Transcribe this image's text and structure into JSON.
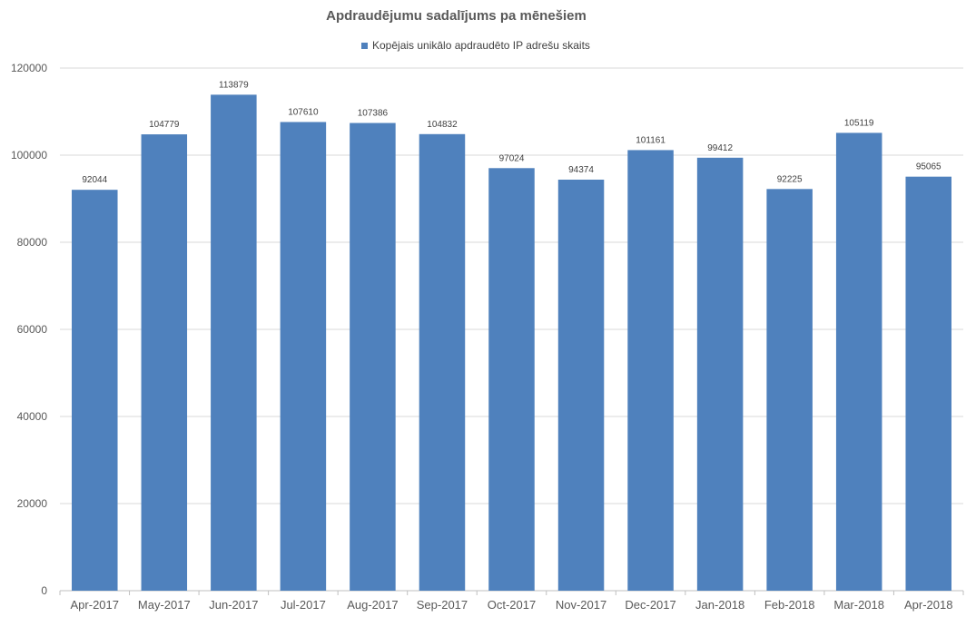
{
  "chart_data": {
    "type": "bar",
    "title": "Apdraudējumu sadalījums pa mēnešiem",
    "categories": [
      "Apr-2017",
      "May-2017",
      "Jun-2017",
      "Jul-2017",
      "Aug-2017",
      "Sep-2017",
      "Oct-2017",
      "Nov-2017",
      "Dec-2017",
      "Jan-2018",
      "Feb-2018",
      "Mar-2018",
      "Apr-2018"
    ],
    "series": [
      {
        "name": "Kopējais unikālo apdraudēto IP adrešu skaits",
        "values": [
          92044,
          104779,
          113879,
          107610,
          107386,
          104832,
          97024,
          94374,
          101161,
          99412,
          92225,
          105119,
          95065
        ],
        "color": "#4f81bd"
      }
    ],
    "ylim": [
      0,
      120000
    ],
    "yticks": [
      0,
      20000,
      40000,
      60000,
      80000,
      100000,
      120000
    ],
    "xlabel": "",
    "ylabel": "",
    "grid": true,
    "legend_position": "top",
    "data_labels": true
  }
}
